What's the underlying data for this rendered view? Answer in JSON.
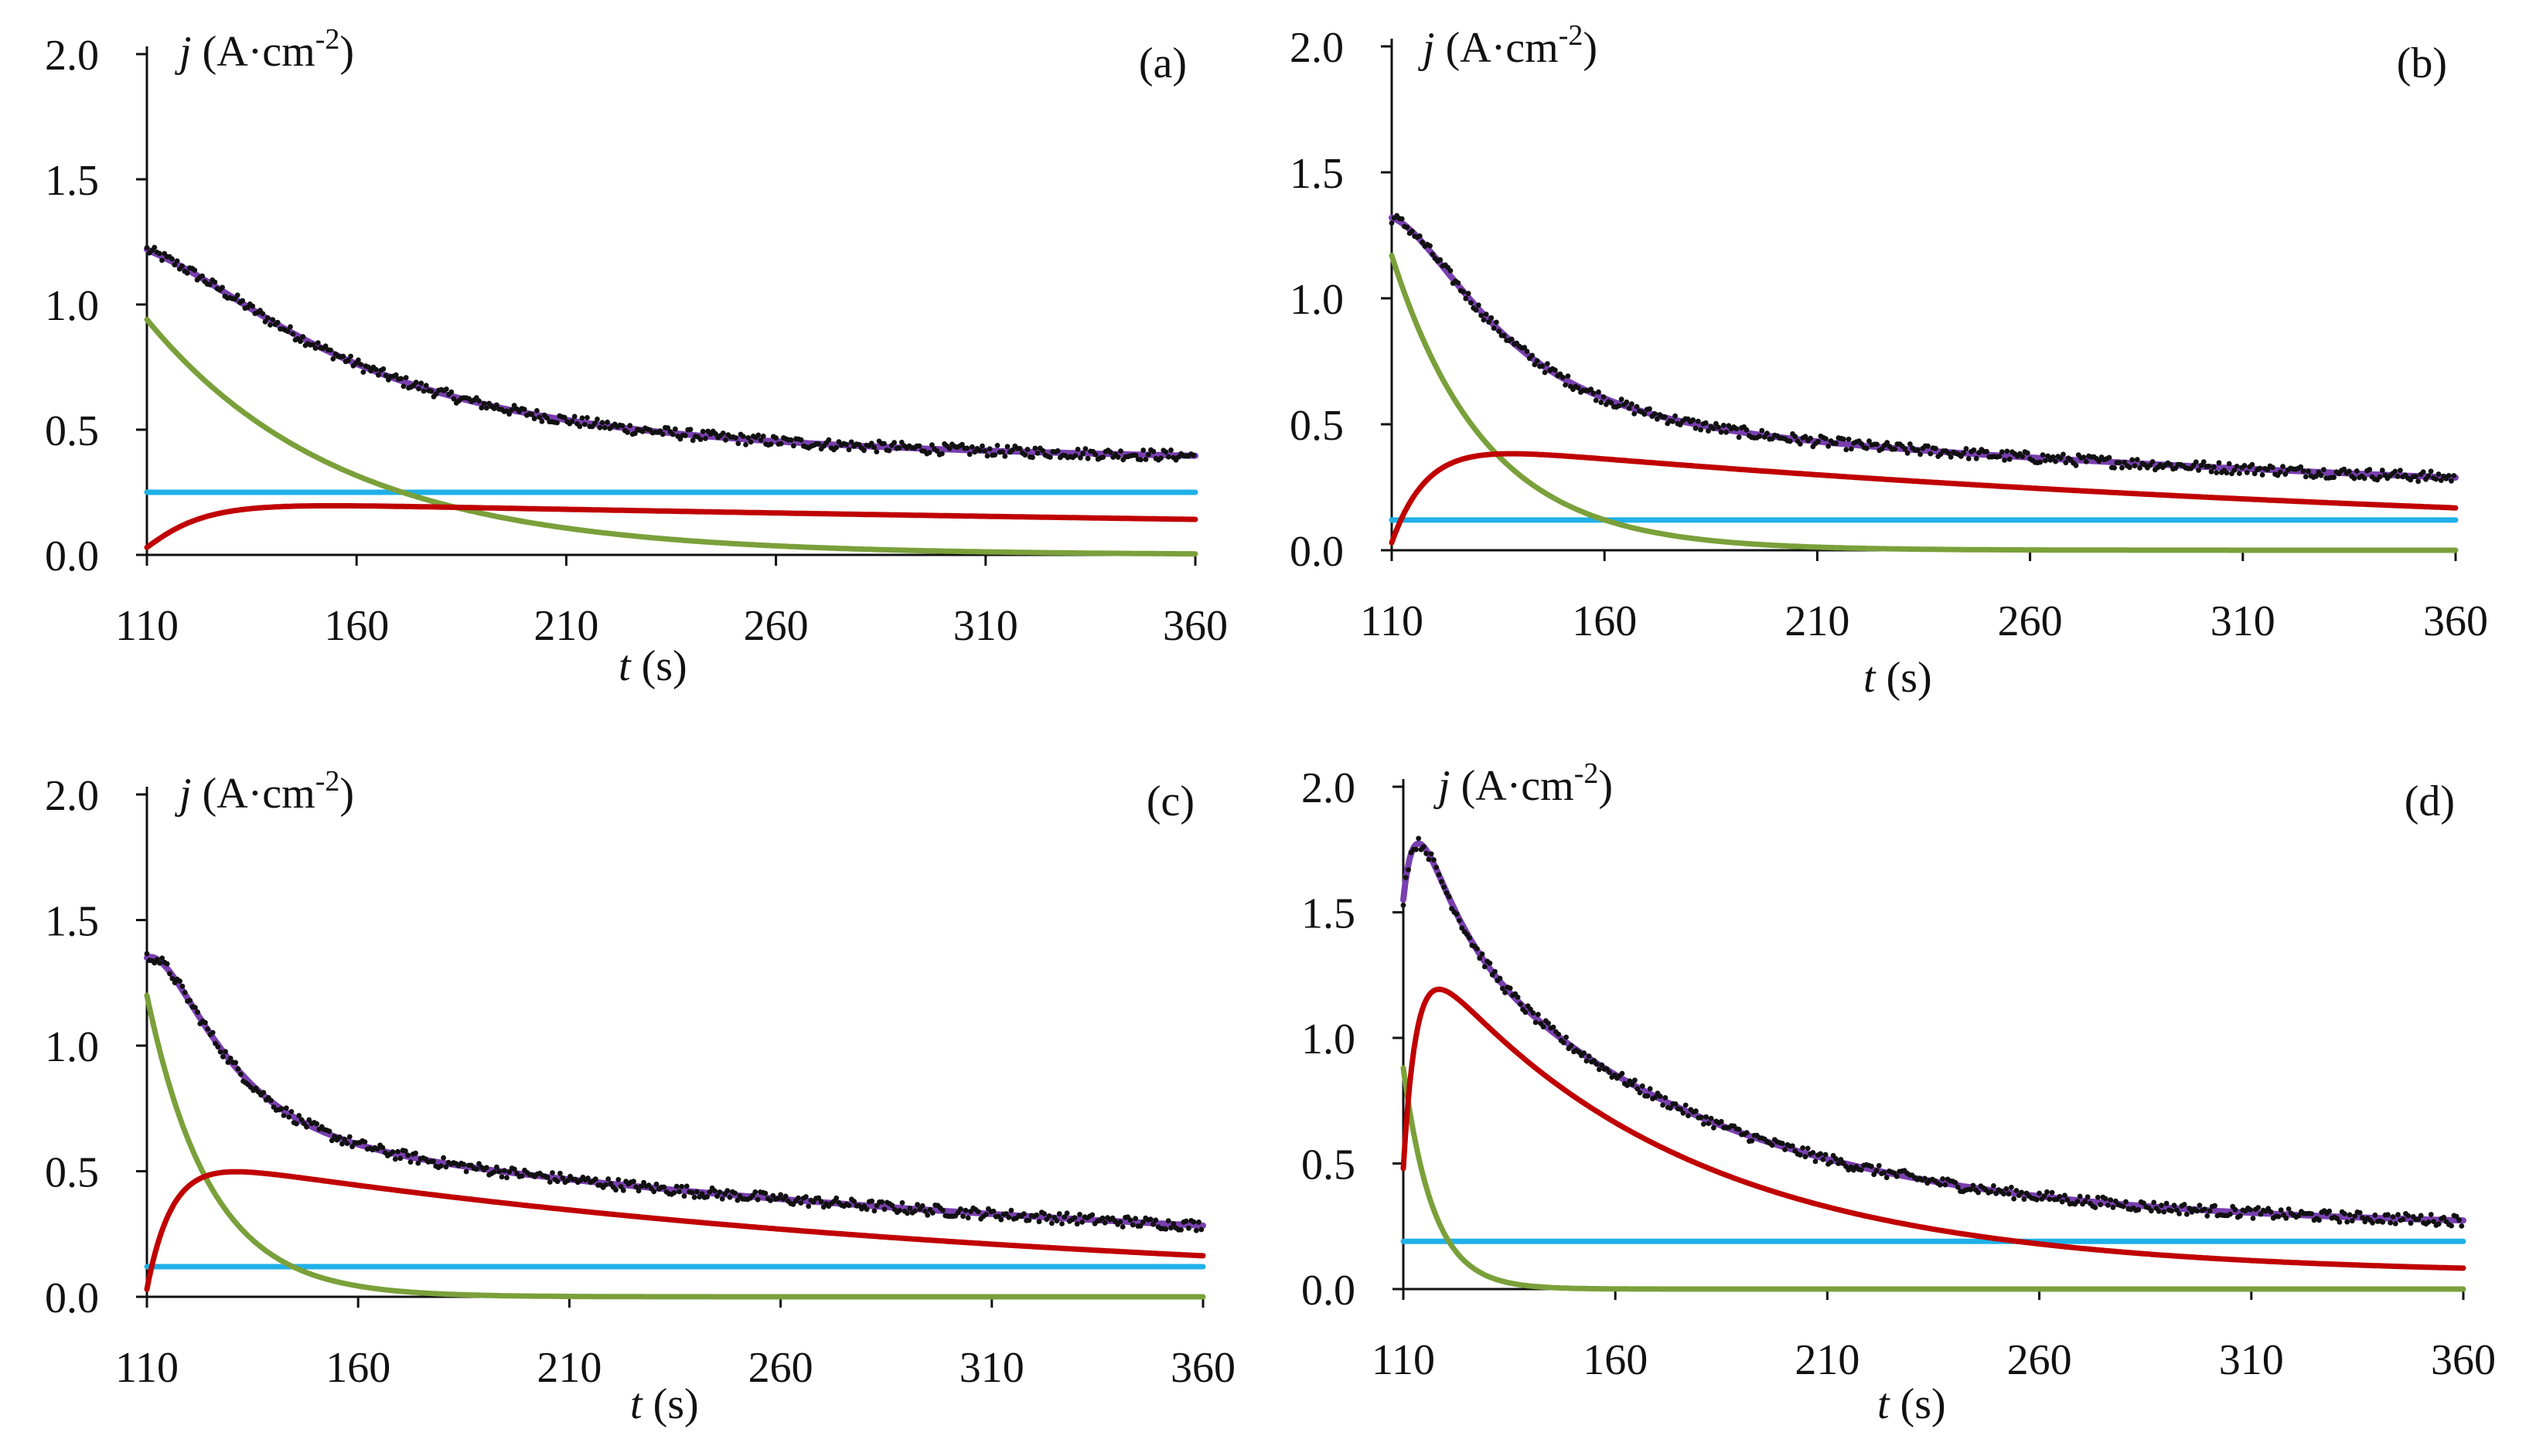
{
  "figure": {
    "description_free": true,
    "colors": {
      "measured": "#111111",
      "total_fit": "#7a3fb0",
      "component_green": "#7aa03a",
      "component_red": "#c00000",
      "component_blue": "#1fb0e8",
      "axis": "#111111"
    }
  },
  "chart_data": [
    {
      "type": "line",
      "panel_label": "(a)",
      "ylabel_italic": "j",
      "ylabel_unit_main": "(A·cm",
      "ylabel_unit_exp": "-2",
      "ylabel_unit_close": ")",
      "xlabel_italic": "t",
      "xlabel_unit": "(s)",
      "xlim": [
        110,
        360
      ],
      "ylim": [
        0,
        2.0
      ],
      "xticks": [
        "110",
        "160",
        "210",
        "260",
        "310",
        "360"
      ],
      "yticks": [
        "0.0",
        "0.5",
        "1.0",
        "1.5",
        "2.0"
      ],
      "model": {
        "baseline": 0.25,
        "green_A": 0.94,
        "green_tau": 46,
        "red_A": 0.215,
        "red_rise": 11,
        "red_decay": 600
      }
    },
    {
      "type": "line",
      "panel_label": "(b)",
      "ylabel_italic": "j",
      "ylabel_unit_main": "(A·cm",
      "ylabel_unit_exp": "-2",
      "ylabel_unit_close": ")",
      "xlabel_italic": "t",
      "xlabel_unit": "(s)",
      "xlim": [
        110,
        360
      ],
      "ylim": [
        0,
        2.0
      ],
      "xticks": [
        "110",
        "160",
        "210",
        "260",
        "310",
        "360"
      ],
      "yticks": [
        "0.0",
        "0.5",
        "1.0",
        "1.5",
        "2.0"
      ],
      "model": {
        "baseline": 0.12,
        "green_A": 1.17,
        "green_tau": 22,
        "red_A": 0.44,
        "red_rise": 8,
        "red_decay": 260
      }
    },
    {
      "type": "line",
      "panel_label": "(c)",
      "ylabel_italic": "j",
      "ylabel_unit_main": "(A·cm",
      "ylabel_unit_exp": "-2",
      "ylabel_unit_close": ")",
      "xlabel_italic": "t",
      "xlabel_unit": "(s)",
      "xlim": [
        110,
        360
      ],
      "ylim": [
        0,
        2.0
      ],
      "xticks": [
        "110",
        "160",
        "210",
        "260",
        "310",
        "360"
      ],
      "yticks": [
        "0.0",
        "0.5",
        "1.0",
        "1.5",
        "2.0"
      ],
      "model": {
        "baseline": 0.12,
        "green_A": 1.2,
        "green_tau": 15,
        "red_A": 0.57,
        "red_rise": 6,
        "red_decay": 200
      }
    },
    {
      "type": "line",
      "panel_label": "(d)",
      "ylabel_italic": "j",
      "ylabel_unit_main": "(A·cm",
      "ylabel_unit_exp": "-2",
      "ylabel_unit_close": ")",
      "xlabel_italic": "t",
      "xlabel_unit": "(s)",
      "xlim": [
        110,
        360
      ],
      "ylim": [
        0,
        2.0
      ],
      "xticks": [
        "110",
        "160",
        "210",
        "260",
        "310",
        "360"
      ],
      "yticks": [
        "0.0",
        "0.5",
        "1.0",
        "1.5",
        "2.0"
      ],
      "model": {
        "baseline": 0.19,
        "green_A": 0.88,
        "green_tau": 7,
        "red_A": 1.35,
        "red_rise": 3,
        "red_decay": 60,
        "red_A2": 0.08,
        "red_decay2": 1000
      }
    }
  ]
}
